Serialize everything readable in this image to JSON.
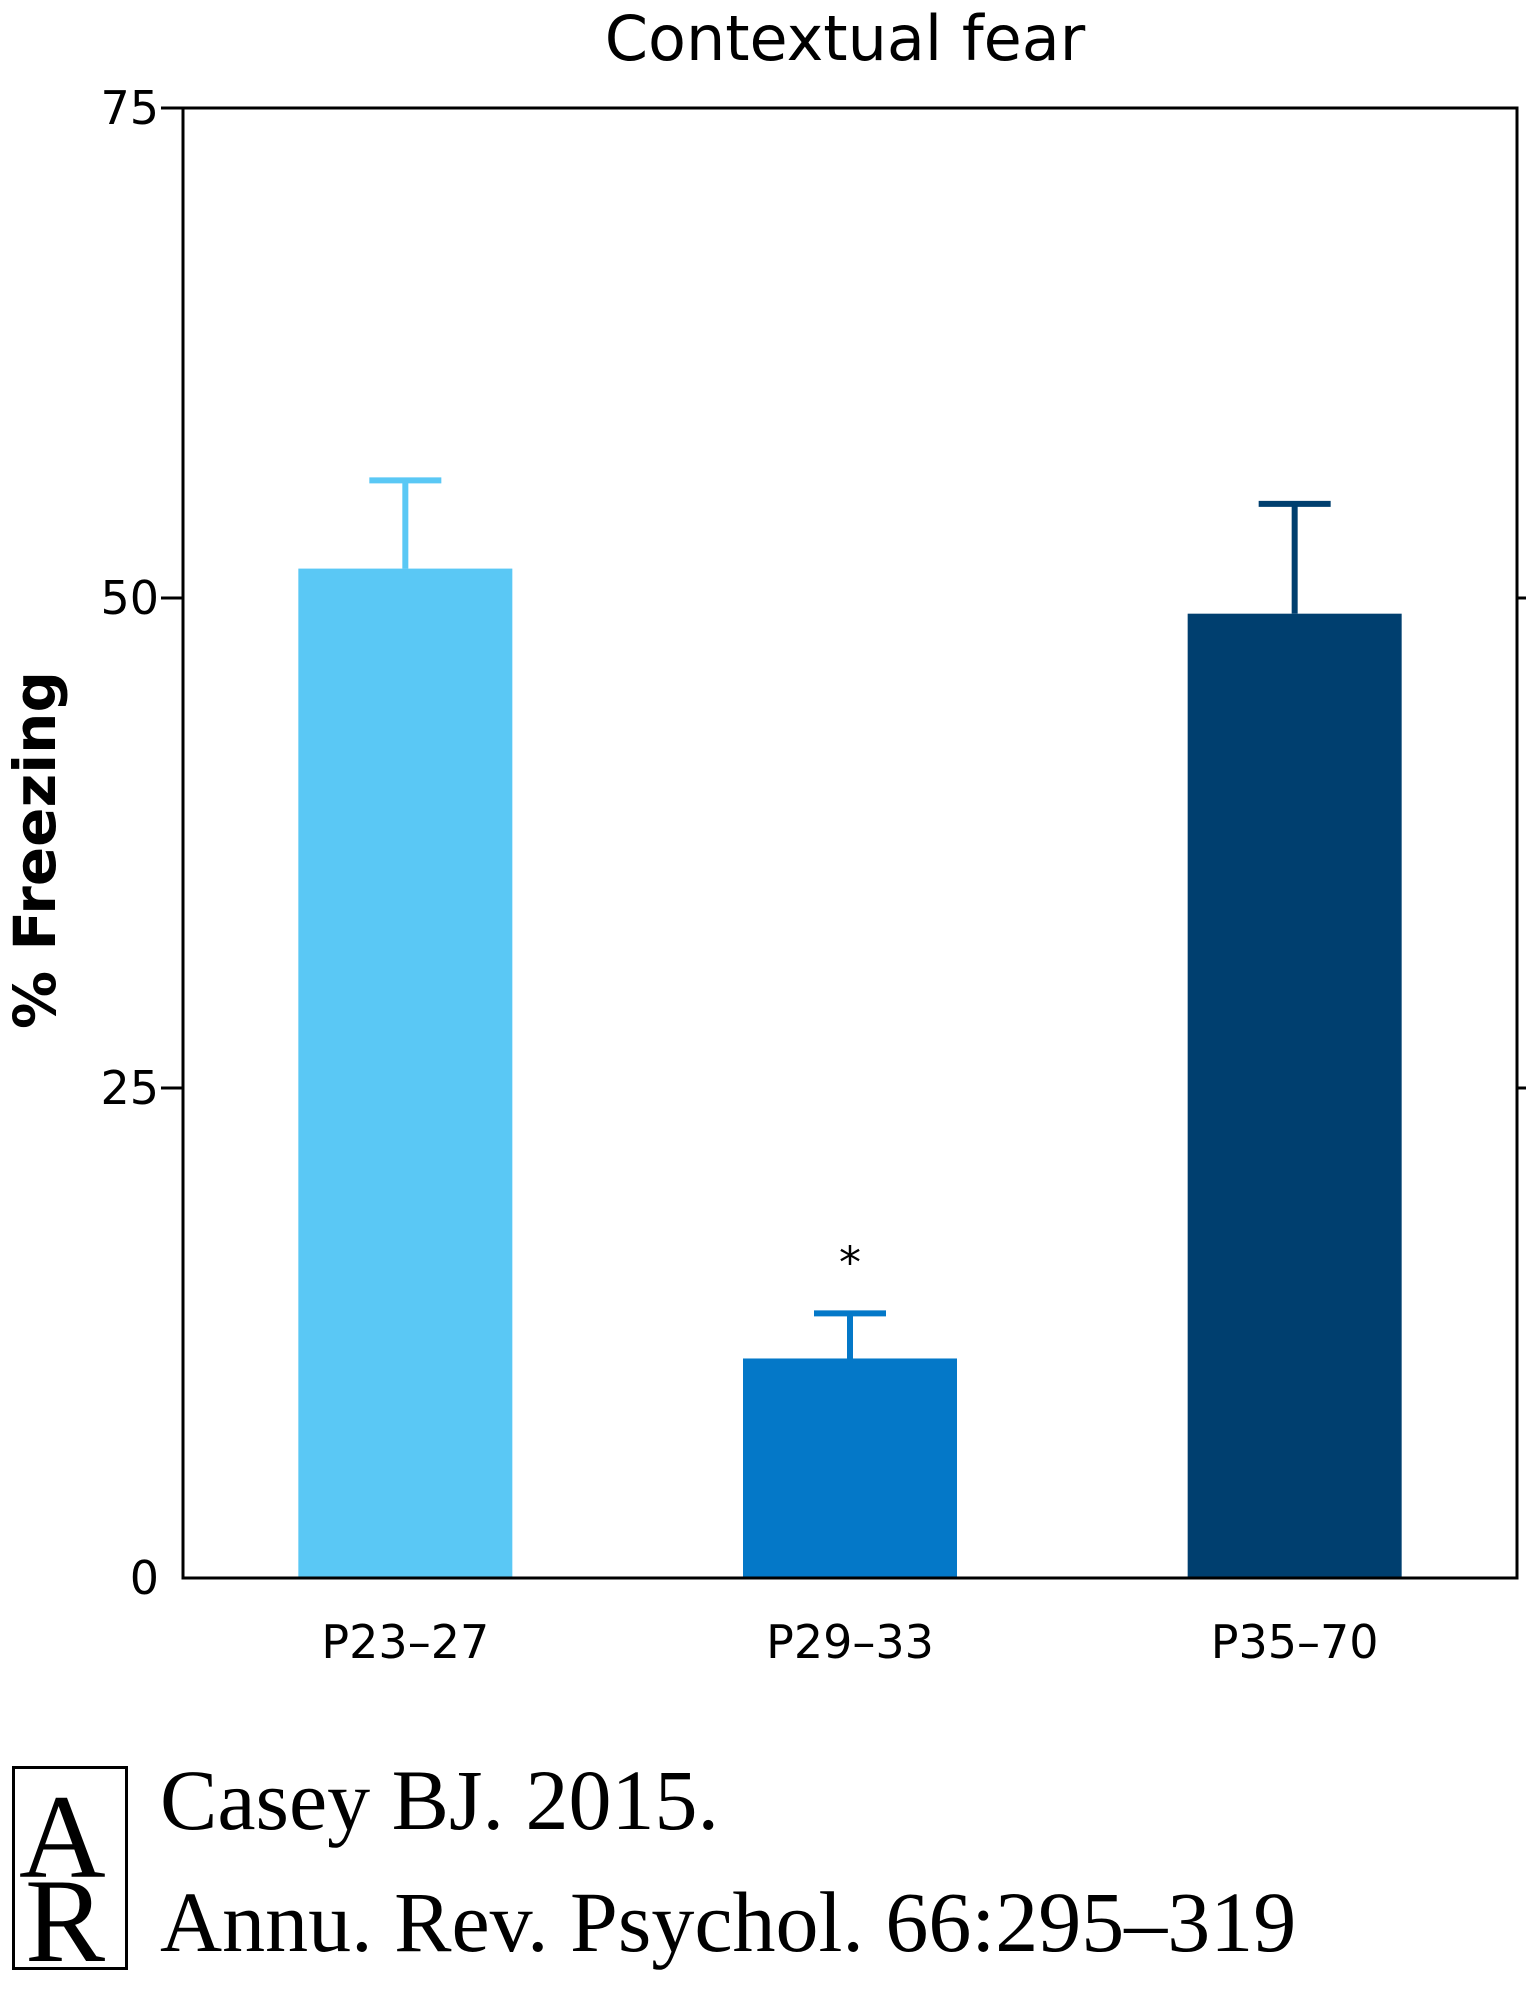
{
  "chart_data": {
    "type": "bar",
    "title": "Contextual fear",
    "xlabel": "",
    "ylabel": "% Freezing",
    "ylim": [
      0,
      75
    ],
    "yticks": [
      0,
      25,
      50,
      75
    ],
    "categories": [
      "P23–27",
      "P29–33",
      "P35–70"
    ],
    "values": [
      51.5,
      11.2,
      49.2
    ],
    "errors": [
      4.5,
      2.3,
      5.6
    ],
    "colors": [
      "#5ac8f5",
      "#0478c8",
      "#003f6f"
    ],
    "annotations": [
      {
        "category": "P29–33",
        "text": "*"
      }
    ]
  },
  "citation": {
    "line1": "Casey BJ. 2015.",
    "line2": "Annu. Rev. Psychol. 66:295–319",
    "logo_text": "AR"
  }
}
